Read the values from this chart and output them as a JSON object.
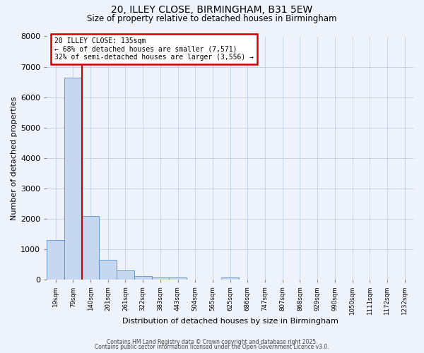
{
  "title_line1": "20, ILLEY CLOSE, BIRMINGHAM, B31 5EW",
  "title_line2": "Size of property relative to detached houses in Birmingham",
  "xlabel": "Distribution of detached houses by size in Birmingham",
  "ylabel": "Number of detached properties",
  "bar_labels": [
    "19sqm",
    "79sqm",
    "140sqm",
    "201sqm",
    "261sqm",
    "322sqm",
    "383sqm",
    "443sqm",
    "504sqm",
    "565sqm",
    "625sqm",
    "686sqm",
    "747sqm",
    "807sqm",
    "868sqm",
    "929sqm",
    "990sqm",
    "1050sqm",
    "1111sqm",
    "1172sqm",
    "1232sqm"
  ],
  "bar_values": [
    1300,
    6650,
    2100,
    650,
    300,
    120,
    90,
    70,
    0,
    0,
    80,
    0,
    0,
    0,
    0,
    0,
    0,
    0,
    0,
    0,
    0
  ],
  "bar_color": "#c5d8f0",
  "bar_edge_color": "#5b8ec4",
  "vline_color": "#cc0000",
  "annotation_title": "20 ILLEY CLOSE: 135sqm",
  "annotation_line2": "← 68% of detached houses are smaller (7,571)",
  "annotation_line3": "32% of semi-detached houses are larger (3,556) →",
  "annotation_box_color": "#cc0000",
  "ylim": [
    0,
    8000
  ],
  "yticks": [
    0,
    1000,
    2000,
    3000,
    4000,
    5000,
    6000,
    7000,
    8000
  ],
  "footer_line1": "Contains HM Land Registry data © Crown copyright and database right 2025.",
  "footer_line2": "Contains public sector information licensed under the Open Government Licence v3.0.",
  "bg_color": "#eef2fb",
  "plot_bg_color": "#eef2fb",
  "grid_color": "#b8c8e0"
}
